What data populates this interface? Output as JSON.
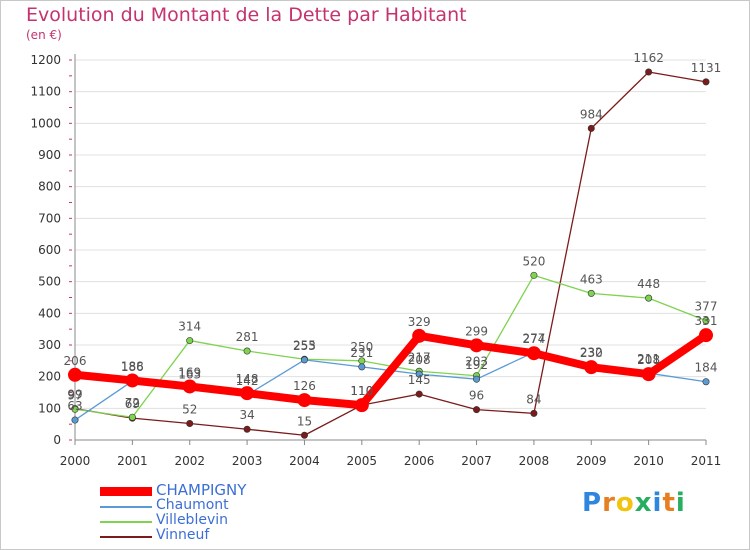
{
  "header": {
    "title": "Evolution du Montant de la Dette par Habitant",
    "subtitle": "(en €)"
  },
  "brand": {
    "logo_text": "Proxiti"
  },
  "colors": {
    "title": "#c4336f",
    "legend_text": "#3b6fd6",
    "grid": "#e0e0e0"
  },
  "chart_data": {
    "type": "line",
    "title": "Evolution du Montant de la Dette par Habitant",
    "subtitle": "(en €)",
    "xlabel": "",
    "ylabel": "",
    "ylim": [
      0,
      1200
    ],
    "yticks": [
      0,
      100,
      200,
      300,
      400,
      500,
      600,
      700,
      800,
      900,
      1000,
      1100,
      1200
    ],
    "grid": true,
    "legend_position": "bottom-left",
    "categories": [
      "2000",
      "2001",
      "2002",
      "2003",
      "2004",
      "2005",
      "2006",
      "2007",
      "2008",
      "2009",
      "2010",
      "2011"
    ],
    "series": [
      {
        "name": "CHAMPIGNY",
        "color": "#ff0000",
        "values": [
          206,
          188,
          169,
          148,
          126,
          110,
          329,
          299,
          274,
          230,
          208,
          331
        ]
      },
      {
        "name": "Chaumont",
        "color": "#5b9bd5",
        "values": [
          63,
          186,
          163,
          142,
          253,
          231,
          208,
          192,
          277,
          232,
          211,
          184
        ]
      },
      {
        "name": "Villeblevin",
        "color": "#7ed34f",
        "values": [
          97,
          72,
          314,
          281,
          255,
          250,
          217,
          203,
          520,
          463,
          448,
          377
        ]
      },
      {
        "name": "Vinneuf",
        "color": "#7b1b1b",
        "values": [
          99,
          69,
          52,
          34,
          15,
          110,
          145,
          96,
          84,
          984,
          1162,
          1131
        ]
      }
    ]
  }
}
